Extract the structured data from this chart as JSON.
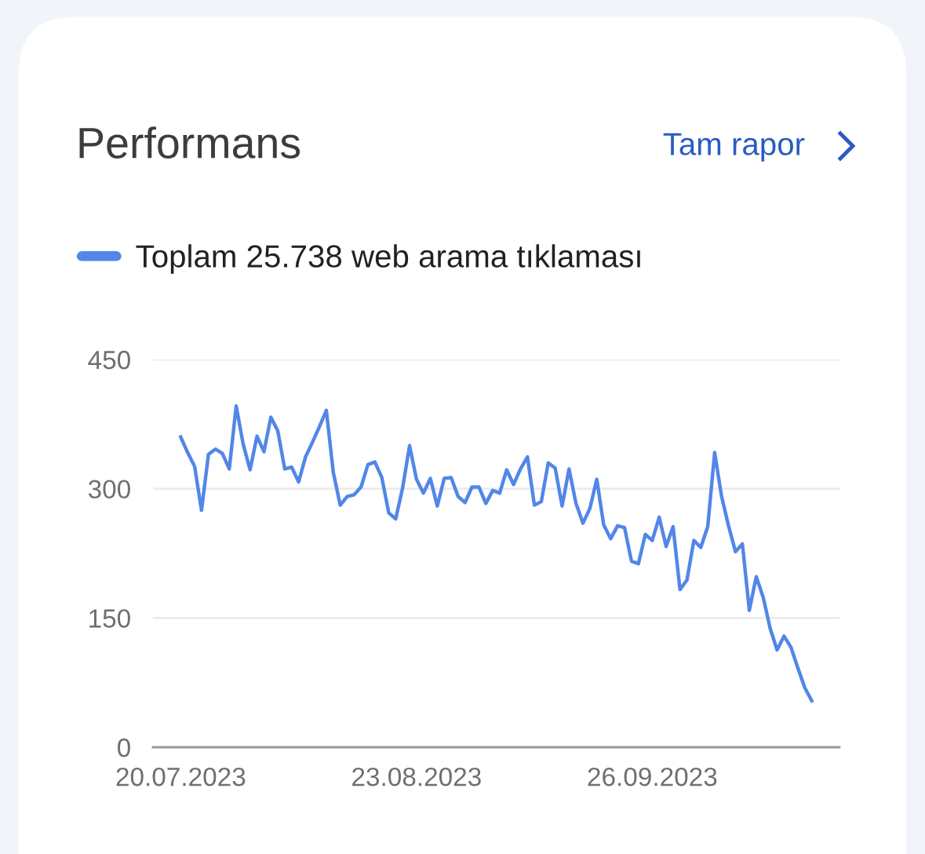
{
  "chart_data": {
    "type": "line",
    "title": "Performans",
    "annotations": [
      "Tam rapor"
    ],
    "x": [
      "2023-07-20",
      "2023-07-21",
      "2023-07-22",
      "2023-07-23",
      "2023-07-24",
      "2023-07-25",
      "2023-07-26",
      "2023-07-27",
      "2023-07-28",
      "2023-07-29",
      "2023-07-30",
      "2023-07-31",
      "2023-08-01",
      "2023-08-02",
      "2023-08-03",
      "2023-08-04",
      "2023-08-05",
      "2023-08-06",
      "2023-08-07",
      "2023-08-08",
      "2023-08-09",
      "2023-08-10",
      "2023-08-11",
      "2023-08-12",
      "2023-08-13",
      "2023-08-14",
      "2023-08-15",
      "2023-08-16",
      "2023-08-17",
      "2023-08-18",
      "2023-08-19",
      "2023-08-20",
      "2023-08-21",
      "2023-08-22",
      "2023-08-23",
      "2023-08-24",
      "2023-08-25",
      "2023-08-26",
      "2023-08-27",
      "2023-08-28",
      "2023-08-29",
      "2023-08-30",
      "2023-08-31",
      "2023-09-01",
      "2023-09-02",
      "2023-09-03",
      "2023-09-04",
      "2023-09-05",
      "2023-09-06",
      "2023-09-07",
      "2023-09-08",
      "2023-09-09",
      "2023-09-10",
      "2023-09-11",
      "2023-09-12",
      "2023-09-13",
      "2023-09-14",
      "2023-09-15",
      "2023-09-16",
      "2023-09-17",
      "2023-09-18",
      "2023-09-19",
      "2023-09-20",
      "2023-09-21",
      "2023-09-22",
      "2023-09-23",
      "2023-09-24",
      "2023-09-25",
      "2023-09-26",
      "2023-09-27",
      "2023-09-28",
      "2023-09-29",
      "2023-09-30",
      "2023-10-01",
      "2023-10-02",
      "2023-10-03",
      "2023-10-04",
      "2023-10-05",
      "2023-10-06",
      "2023-10-07",
      "2023-10-08",
      "2023-10-09",
      "2023-10-10",
      "2023-10-11",
      "2023-10-12",
      "2023-10-13",
      "2023-10-14",
      "2023-10-15",
      "2023-10-16",
      "2023-10-17",
      "2023-10-18",
      "2023-10-19"
    ],
    "series": [
      {
        "name": "Toplam 25.738 web arama tıklaması",
        "color": "#5286e8",
        "values": [
          360,
          342,
          326,
          275,
          340,
          346,
          341,
          323,
          396,
          352,
          322,
          361,
          343,
          383,
          367,
          323,
          325,
          308,
          337,
          354,
          372,
          391,
          319,
          281,
          291,
          293,
          302,
          328,
          331,
          313,
          272,
          265,
          301,
          350,
          311,
          295,
          312,
          280,
          312,
          313,
          291,
          284,
          302,
          302,
          283,
          298,
          295,
          322,
          305,
          323,
          337,
          281,
          285,
          330,
          324,
          280,
          323,
          283,
          260,
          277,
          311,
          258,
          242,
          257,
          255,
          216,
          213,
          247,
          240,
          267,
          233,
          256,
          183,
          194,
          240,
          232,
          256,
          342,
          291,
          257,
          227,
          236,
          159,
          198,
          174,
          138,
          113,
          129,
          116,
          92,
          69,
          54
        ]
      }
    ],
    "xlim": [
      "2023-07-16",
      "2023-10-23"
    ],
    "xticks": [
      {
        "value": "2023-07-20",
        "label": "20.07.2023"
      },
      {
        "value": "2023-08-23",
        "label": "23.08.2023"
      },
      {
        "value": "2023-09-26",
        "label": "26.09.2023"
      }
    ],
    "ylim": [
      0,
      450
    ],
    "yticks": [
      0,
      150,
      300,
      450
    ],
    "grid": "y",
    "legend": "top left",
    "marker": "none",
    "line_style": "solid"
  }
}
